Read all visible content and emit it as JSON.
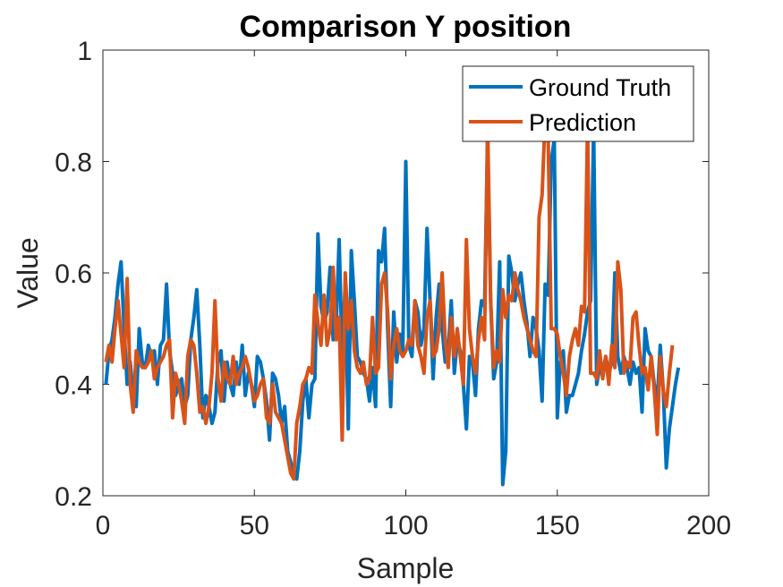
{
  "chart_data": {
    "type": "line",
    "title": "Comparison Y position",
    "xlabel": "Sample",
    "ylabel": "Value",
    "xlim": [
      0,
      200
    ],
    "ylim": [
      0.2,
      1
    ],
    "xticks": [
      0,
      50,
      100,
      150,
      200
    ],
    "yticks": [
      0.2,
      0.4,
      0.6,
      0.8,
      1
    ],
    "xtick_labels": [
      "0",
      "50",
      "100",
      "150",
      "200"
    ],
    "ytick_labels": [
      "0.2",
      "0.4",
      "0.6",
      "0.8",
      "1"
    ],
    "grid": false,
    "legend_position": "top-right",
    "series": [
      {
        "name": "Ground Truth",
        "color": "#0072BD",
        "values": [
          0.4,
          0.46,
          0.48,
          0.52,
          0.58,
          0.62,
          0.5,
          0.4,
          0.44,
          0.38,
          0.36,
          0.5,
          0.44,
          0.43,
          0.47,
          0.45,
          0.46,
          0.4,
          0.47,
          0.48,
          0.58,
          0.46,
          0.42,
          0.38,
          0.4,
          0.41,
          0.36,
          0.38,
          0.48,
          0.52,
          0.57,
          0.47,
          0.34,
          0.38,
          0.36,
          0.33,
          0.35,
          0.44,
          0.46,
          0.37,
          0.44,
          0.4,
          0.38,
          0.44,
          0.4,
          0.47,
          0.38,
          0.42,
          0.4,
          0.36,
          0.45,
          0.44,
          0.41,
          0.37,
          0.3,
          0.42,
          0.41,
          0.38,
          0.33,
          0.36,
          0.28,
          0.26,
          0.24,
          0.23,
          0.28,
          0.37,
          0.41,
          0.34,
          0.4,
          0.41,
          0.67,
          0.54,
          0.51,
          0.53,
          0.61,
          0.48,
          0.5,
          0.66,
          0.45,
          0.58,
          0.32,
          0.64,
          0.55,
          0.45,
          0.44,
          0.42,
          0.41,
          0.37,
          0.43,
          0.36,
          0.64,
          0.62,
          0.68,
          0.5,
          0.36,
          0.53,
          0.44,
          0.49,
          0.46,
          0.8,
          0.47,
          0.45,
          0.55,
          0.53,
          0.47,
          0.5,
          0.68,
          0.55,
          0.41,
          0.52,
          0.58,
          0.5,
          0.44,
          0.46,
          0.55,
          0.42,
          0.48,
          0.46,
          0.4,
          0.32,
          0.45,
          0.44,
          0.38,
          0.5,
          0.55,
          0.54,
          0.84,
          0.55,
          0.41,
          0.44,
          0.62,
          0.22,
          0.28,
          0.63,
          0.6,
          0.55,
          0.58,
          0.6,
          0.55,
          0.51,
          0.45,
          0.52,
          0.5,
          0.46,
          0.37,
          0.58,
          0.56,
          0.8,
          0.84,
          0.34,
          0.44,
          0.46,
          0.35,
          0.38,
          0.38,
          0.4,
          0.42,
          0.46,
          0.49,
          0.53,
          0.55,
          0.86,
          0.4,
          0.43,
          0.42,
          0.45,
          0.42,
          0.44,
          0.6,
          0.45,
          0.42,
          0.45,
          0.43,
          0.4,
          0.44,
          0.42,
          0.43,
          0.35,
          0.5,
          0.46,
          0.45,
          0.4,
          0.37,
          0.47,
          0.39,
          0.25,
          0.32,
          0.36,
          0.4,
          0.43
        ]
      },
      {
        "name": "Prediction",
        "color": "#D95319",
        "values": [
          0.44,
          0.47,
          0.44,
          0.5,
          0.55,
          0.49,
          0.43,
          0.59,
          0.4,
          0.35,
          0.46,
          0.44,
          0.43,
          0.43,
          0.44,
          0.46,
          0.41,
          0.43,
          0.44,
          0.45,
          0.47,
          0.48,
          0.34,
          0.42,
          0.4,
          0.37,
          0.33,
          0.45,
          0.48,
          0.47,
          0.42,
          0.35,
          0.36,
          0.33,
          0.36,
          0.42,
          0.55,
          0.41,
          0.37,
          0.44,
          0.41,
          0.4,
          0.45,
          0.4,
          0.42,
          0.43,
          0.45,
          0.43,
          0.4,
          0.37,
          0.38,
          0.4,
          0.41,
          0.34,
          0.33,
          0.4,
          0.35,
          0.34,
          0.33,
          0.3,
          0.27,
          0.24,
          0.23,
          0.33,
          0.36,
          0.4,
          0.41,
          0.43,
          0.42,
          0.56,
          0.51,
          0.47,
          0.56,
          0.47,
          0.5,
          0.61,
          0.48,
          0.52,
          0.3,
          0.6,
          0.5,
          0.55,
          0.46,
          0.43,
          0.42,
          0.44,
          0.4,
          0.41,
          0.52,
          0.42,
          0.43,
          0.58,
          0.6,
          0.53,
          0.41,
          0.47,
          0.5,
          0.46,
          0.45,
          0.46,
          0.48,
          0.47,
          0.55,
          0.47,
          0.45,
          0.42,
          0.52,
          0.55,
          0.45,
          0.46,
          0.5,
          0.6,
          0.48,
          0.43,
          0.52,
          0.45,
          0.5,
          0.45,
          0.4,
          0.66,
          0.5,
          0.45,
          0.42,
          0.48,
          0.52,
          0.48,
          0.87,
          0.55,
          0.43,
          0.46,
          0.44,
          0.57,
          0.52,
          0.56,
          0.55,
          0.6,
          0.57,
          0.55,
          0.52,
          0.5,
          0.48,
          0.46,
          0.45,
          0.7,
          0.74,
          0.88,
          0.84,
          0.5,
          0.5,
          0.49,
          0.45,
          0.42,
          0.38,
          0.45,
          0.48,
          0.5,
          0.47,
          0.54,
          0.53,
          0.87,
          0.42,
          0.42,
          0.41,
          0.46,
          0.41,
          0.45,
          0.4,
          0.47,
          0.43,
          0.62,
          0.57,
          0.42,
          0.44,
          0.43,
          0.52,
          0.53,
          0.47,
          0.42,
          0.43,
          0.39,
          0.45,
          0.39,
          0.31,
          0.45,
          0.39,
          0.36,
          0.42,
          0.47
        ]
      }
    ]
  }
}
